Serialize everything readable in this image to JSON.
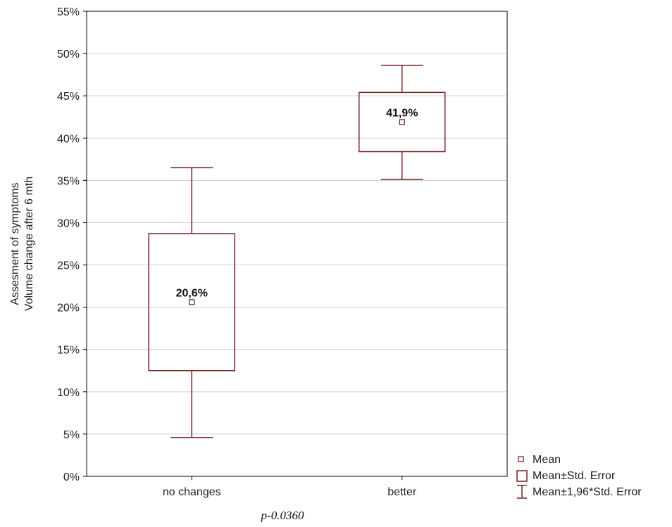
{
  "chart_data": {
    "type": "box",
    "xlabel": "",
    "ylabel_lines": [
      "Assesment of symptoms",
      "Volume change after 6 mth"
    ],
    "ylim": [
      0,
      55
    ],
    "y_ticks": [
      "0%",
      "5%",
      "10%",
      "15%",
      "20%",
      "25%",
      "30%",
      "35%",
      "40%",
      "45%",
      "50%",
      "55%"
    ],
    "y_tick_values": [
      0,
      5,
      10,
      15,
      20,
      25,
      30,
      35,
      40,
      45,
      50,
      55
    ],
    "grid": "horizontal",
    "categories": [
      "no changes",
      "better"
    ],
    "groups": [
      {
        "category": "no changes",
        "mean": 20.6,
        "mean_label": "20,6%",
        "se_low": 12.5,
        "se_high": 28.7,
        "ci_low": 4.6,
        "ci_high": 36.5
      },
      {
        "category": "better",
        "mean": 41.9,
        "mean_label": "41,9%",
        "se_low": 38.4,
        "se_high": 45.4,
        "ci_low": 35.1,
        "ci_high": 48.6
      }
    ],
    "legend": {
      "position": "bottom-right",
      "entries": [
        "Mean",
        "Mean±Std. Error",
        "Mean±1,96*Std. Error"
      ]
    },
    "annotation": "p-0.0360",
    "colors": {
      "marks": "#7b1f22",
      "grid": "#d0d0d0",
      "frame": "#000000"
    }
  }
}
